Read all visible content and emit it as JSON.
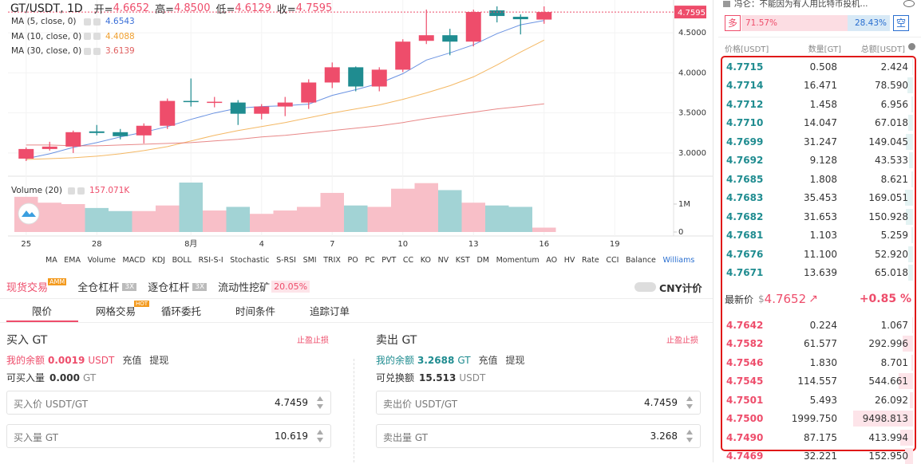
{
  "chart_data": {
    "type": "candlestick",
    "title": "GT/USDT, 1D",
    "ohlc": [
      {
        "label": "开=",
        "value": "4.6652"
      },
      {
        "label": "高=",
        "value": "4.8500"
      },
      {
        "label": "低=",
        "value": "4.6129"
      },
      {
        "label": "收=",
        "value": "4.7595"
      }
    ],
    "categories": [
      "25",
      null,
      null,
      "28",
      null,
      null,
      null,
      "8月",
      null,
      null,
      "4",
      null,
      null,
      "7",
      null,
      null,
      "10",
      null,
      null,
      "13",
      null,
      null,
      "16",
      null,
      null,
      "19",
      null,
      null
    ],
    "open": [
      2.93,
      3.05,
      3.08,
      3.27,
      3.26,
      3.22,
      3.34,
      3.65,
      3.63,
      3.63,
      3.49,
      3.58,
      3.63,
      3.88,
      4.07,
      3.83,
      4.04,
      4.4,
      4.47,
      4.39,
      4.78,
      4.7,
      4.6652,
      null,
      null,
      null,
      null,
      null
    ],
    "high": [
      3.07,
      3.14,
      3.28,
      3.35,
      3.3,
      3.37,
      3.68,
      3.93,
      3.7,
      3.66,
      3.61,
      3.7,
      3.92,
      4.13,
      4.08,
      4.07,
      4.42,
      4.79,
      4.55,
      4.79,
      4.86,
      4.73,
      4.85,
      null,
      null,
      null,
      null,
      null
    ],
    "low": [
      2.9,
      3.03,
      3.0,
      3.22,
      3.17,
      3.12,
      3.3,
      3.58,
      3.57,
      3.35,
      3.42,
      3.46,
      3.55,
      3.81,
      3.77,
      3.77,
      4.01,
      4.36,
      4.22,
      4.33,
      4.63,
      4.48,
      4.6129,
      null,
      null,
      null,
      null,
      null
    ],
    "close": [
      3.05,
      3.08,
      3.26,
      3.25,
      3.21,
      3.34,
      3.65,
      3.64,
      3.64,
      3.49,
      3.58,
      3.63,
      3.88,
      4.07,
      3.83,
      4.04,
      4.39,
      4.47,
      4.39,
      4.76,
      4.71,
      4.67,
      4.7595,
      null,
      null,
      null,
      null,
      null
    ],
    "up_color": "#ee4d6b",
    "down_color": "#1f8c90",
    "ylim": [
      2.84,
      4.83
    ],
    "yticks": [
      {
        "value": 3,
        "label": "3.0000"
      },
      {
        "value": 3.5,
        "label": "3.5000"
      },
      {
        "value": 4,
        "label": "4.0000"
      },
      {
        "value": 4.5,
        "label": "4.5000"
      }
    ],
    "grid": true,
    "ma": [
      {
        "name": "MA (5, close, 0)",
        "color": "#3a6fd8",
        "values": [
          2.93,
          2.99,
          3.07,
          3.13,
          3.2,
          3.26,
          3.33,
          3.42,
          3.5,
          3.56,
          3.58,
          3.59,
          3.61,
          3.72,
          3.79,
          3.87,
          3.99,
          4.16,
          4.25,
          4.35,
          4.49,
          4.6,
          4.6543,
          null,
          null,
          null,
          null,
          null
        ]
      },
      {
        "name": "MA (10, close, 0)",
        "color": "#f0a030",
        "values": [
          2.92,
          2.93,
          2.94,
          2.96,
          2.99,
          3.03,
          3.08,
          3.15,
          3.22,
          3.28,
          3.33,
          3.38,
          3.44,
          3.5,
          3.55,
          3.6,
          3.67,
          3.75,
          3.84,
          3.95,
          4.1,
          4.26,
          4.4088,
          null,
          null,
          null,
          null,
          null
        ]
      },
      {
        "name": "MA (30, close, 0)",
        "color": "#e06060",
        "values": [
          3.1,
          3.1,
          3.09,
          3.09,
          3.1,
          3.11,
          3.12,
          3.13,
          3.15,
          3.17,
          3.2,
          3.22,
          3.25,
          3.28,
          3.31,
          3.34,
          3.38,
          3.43,
          3.47,
          3.51,
          3.55,
          3.58,
          3.6139,
          null,
          null,
          null,
          null,
          null
        ]
      }
    ],
    "volume": {
      "name": "Volume (20)",
      "value_label": "157.071K",
      "up_color": "#f8bfc8",
      "down_color": "#a2d3d5",
      "values": [
        1260000,
        1050000,
        1000000,
        860000,
        750000,
        750000,
        950000,
        1770000,
        770000,
        900000,
        650000,
        770000,
        900000,
        1400000,
        950000,
        900000,
        1550000,
        1750000,
        1500000,
        1050000,
        950000,
        900000,
        157071,
        null,
        null,
        null,
        null,
        null
      ],
      "ylim": [
        0,
        1770000
      ],
      "yticks": [
        0,
        {
          "value": 1000000,
          "label": "1M"
        }
      ]
    },
    "indicators": [
      "MA",
      "EMA",
      "Volume",
      "MACD",
      "KDJ",
      "BOLL",
      "RSI-S-I",
      "Stochastic",
      "S-RSI",
      "SMI",
      "TRIX",
      "PO",
      "PC",
      "PVT",
      "CC",
      "KO",
      "NV",
      "KST",
      "DM",
      "Momentum",
      "AO",
      "HV",
      "Rate",
      "CCI",
      "Balance",
      "Williams"
    ]
  },
  "news": "冯仑：不能因为有人用比特币投机...",
  "sentiment": {
    "long_label": "多",
    "short_label": "空",
    "values": [
      71.57,
      28.43
    ],
    "value_labels": [
      "71.57%",
      "28.43%"
    ]
  },
  "orderbook": {
    "headers": [
      "价格[USDT]",
      "数量[GT]",
      "总额[USDT]"
    ],
    "asks": [
      [
        "4.7715",
        "0.508",
        "2.424"
      ],
      [
        "4.7714",
        "16.471",
        "78.590"
      ],
      [
        "4.7712",
        "1.458",
        "6.956"
      ],
      [
        "4.7710",
        "14.047",
        "67.018"
      ],
      [
        "4.7699",
        "31.247",
        "149.045"
      ],
      [
        "4.7692",
        "9.128",
        "43.533"
      ],
      [
        "4.7685",
        "1.808",
        "8.621"
      ],
      [
        "4.7683",
        "35.453",
        "169.051"
      ],
      [
        "4.7682",
        "31.653",
        "150.928"
      ],
      [
        "4.7681",
        "1.103",
        "5.259"
      ],
      [
        "4.7676",
        "11.100",
        "52.920"
      ],
      [
        "4.7671",
        "13.639",
        "65.018"
      ]
    ],
    "latest": {
      "label": "最新价",
      "currency": "$",
      "price": "4.7652",
      "arrow": "↗",
      "change": "+0.85 %"
    },
    "bids": [
      [
        "4.7642",
        "0.224",
        "1.067"
      ],
      [
        "4.7582",
        "61.577",
        "292.996"
      ],
      [
        "4.7546",
        "1.830",
        "8.701"
      ],
      [
        "4.7545",
        "114.557",
        "544.661"
      ],
      [
        "4.7501",
        "5.493",
        "26.092"
      ],
      [
        "4.7500",
        "1999.750",
        "9498.813"
      ],
      [
        "4.7490",
        "87.175",
        "413.994"
      ],
      [
        "4.7469",
        "32.221",
        "152.950"
      ]
    ]
  },
  "trade": {
    "markets": [
      {
        "label": "现货交易",
        "badge": "AMM"
      },
      {
        "label": "全仓杠杆",
        "badge": "3X"
      },
      {
        "label": "逐仓杠杆",
        "badge": "3X"
      },
      {
        "label": "流动性挖矿",
        "badge": "20.05%"
      }
    ],
    "toggle": "CNY计价",
    "order_types": [
      {
        "label": "限价"
      },
      {
        "label": "网格交易",
        "badge": "HOT"
      },
      {
        "label": "循环委托"
      },
      {
        "label": "时间条件"
      },
      {
        "label": "追踪订单"
      }
    ],
    "buy": {
      "title": "买入 GT",
      "tp_sl": "止盈止损",
      "balance_label": "我的余额",
      "balance": "0.0019",
      "balance_unit": "USDT",
      "deposit": "充值",
      "withdraw": "提现",
      "avail_label": "可买入量",
      "avail": "0.000",
      "avail_unit": "GT",
      "price_label": "买入价 USDT/GT",
      "price": "4.7459",
      "amount_label": "买入量 GT",
      "amount": "10.619"
    },
    "sell": {
      "title": "卖出 GT",
      "tp_sl": "止盈止损",
      "balance_label": "我的余额",
      "balance": "3.2688",
      "balance_unit": "GT",
      "deposit": "充值",
      "withdraw": "提现",
      "avail_label": "可兑换额",
      "avail": "15.513",
      "avail_unit": "USDT",
      "price_label": "卖出价 USDT/GT",
      "price": "4.7459",
      "amount_label": "卖出量 GT",
      "amount": "3.268"
    }
  }
}
